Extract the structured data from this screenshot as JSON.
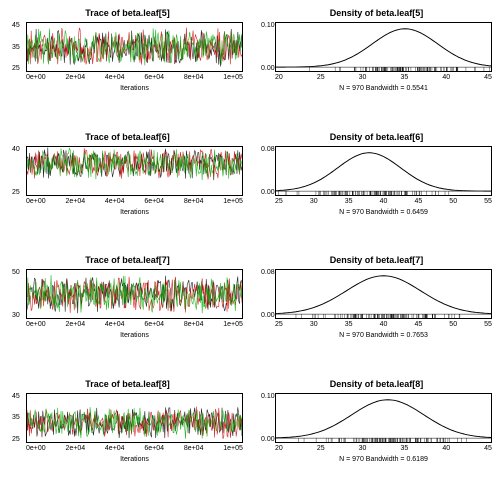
{
  "rows": [
    {
      "idx": 5,
      "trace": {
        "title": "Trace of beta.leaf[5]",
        "ymin": 25,
        "ymax": 45,
        "yticks": [
          "25",
          "35",
          "45"
        ],
        "xticks": [
          "0e+00",
          "2e+04",
          "4e+04",
          "6e+04",
          "8e+04",
          "1e+05"
        ],
        "xlabel": "Iterations",
        "colors": [
          "#000000",
          "#cc0000",
          "#00aa00"
        ],
        "mean": 35,
        "amplitude": 6
      },
      "density": {
        "title": "Density of beta.leaf[5]",
        "xmin": 20,
        "xmax": 45,
        "xticks": [
          "20",
          "25",
          "30",
          "35",
          "40",
          "45"
        ],
        "ymax": 0.12,
        "yticks": [
          "0.00",
          "0.10"
        ],
        "peak_x": 35,
        "sd": 3.8,
        "caption": "N = 970   Bandwidth = 0.5541"
      }
    },
    {
      "idx": 6,
      "trace": {
        "title": "Trace of beta.leaf[6]",
        "ymin": 25,
        "ymax": 45,
        "yticks": [
          "25",
          "",
          "40"
        ],
        "xticks": [
          "0e+00",
          "2e+04",
          "4e+04",
          "6e+04",
          "8e+04",
          "1e+05"
        ],
        "xlabel": "Iterations",
        "colors": [
          "#000000",
          "#cc0000",
          "#00aa00"
        ],
        "mean": 38,
        "amplitude": 5
      },
      "density": {
        "title": "Density of beta.leaf[6]",
        "xmin": 25,
        "xmax": 55,
        "xticks": [
          "25",
          "30",
          "35",
          "40",
          "45",
          "50",
          "55"
        ],
        "ymax": 0.1,
        "yticks": [
          "0.00",
          "0.08"
        ],
        "peak_x": 38,
        "sd": 4.4,
        "caption": "N = 970   Bandwidth = 0.6459"
      }
    },
    {
      "idx": 7,
      "trace": {
        "title": "Trace of beta.leaf[7]",
        "ymin": 30,
        "ymax": 50,
        "yticks": [
          "30",
          "",
          "50"
        ],
        "xticks": [
          "0e+00",
          "2e+04",
          "4e+04",
          "6e+04",
          "8e+04",
          "1e+05"
        ],
        "xlabel": "Iterations",
        "colors": [
          "#000000",
          "#cc0000",
          "#00aa00"
        ],
        "mean": 40,
        "amplitude": 6
      },
      "density": {
        "title": "Density of beta.leaf[7]",
        "xmin": 25,
        "xmax": 55,
        "xticks": [
          "25",
          "30",
          "35",
          "40",
          "45",
          "50",
          "55"
        ],
        "ymax": 0.1,
        "yticks": [
          "0.00",
          "0.08"
        ],
        "peak_x": 40,
        "sd": 5.2,
        "caption": "N = 970   Bandwidth = 0.7653"
      }
    },
    {
      "idx": 8,
      "trace": {
        "title": "Trace of beta.leaf[8]",
        "ymin": 25,
        "ymax": 45,
        "yticks": [
          "25",
          "35",
          "45"
        ],
        "xticks": [
          "0e+00",
          "2e+04",
          "4e+04",
          "6e+04",
          "8e+04",
          "1e+05"
        ],
        "xlabel": "Iterations",
        "colors": [
          "#000000",
          "#cc0000",
          "#00aa00"
        ],
        "mean": 33,
        "amplitude": 5
      },
      "density": {
        "title": "Density of beta.leaf[8]",
        "xmin": 20,
        "xmax": 45,
        "xticks": [
          "20",
          "25",
          "30",
          "35",
          "40",
          "45"
        ],
        "ymax": 0.12,
        "yticks": [
          "0.00",
          "0.10"
        ],
        "peak_x": 33,
        "sd": 4.2,
        "caption": "N = 970   Bandwidth = 0.6189"
      }
    }
  ]
}
